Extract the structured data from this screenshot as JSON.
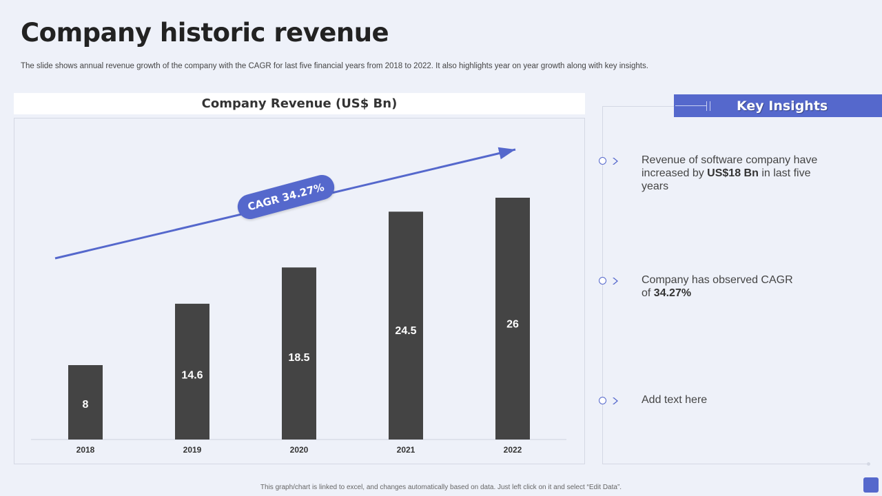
{
  "page": {
    "title": "Company historic revenue",
    "subtitle": "The slide shows annual revenue growth of the company with the CAGR for last five financial years from 2018 to 2022. It also highlights year on year growth along with key insights.",
    "footnote": "This graph/chart is linked to excel, and changes automatically based on data. Just left click on it and select “Edit Data”."
  },
  "chart_data": {
    "type": "bar",
    "title": "Company Revenue (US$ Bn)",
    "categories": [
      "2018",
      "2019",
      "2020",
      "2021",
      "2022"
    ],
    "values": [
      8,
      14.6,
      18.5,
      24.5,
      26
    ],
    "xlabel": "",
    "ylabel": "",
    "ylim": [
      0,
      26
    ],
    "grid": false,
    "bar_color": "#444444",
    "annotation": {
      "label": "CAGR 34.27%",
      "type": "trend-arrow",
      "color": "#5568cc"
    }
  },
  "insights": {
    "title": "Key Insights",
    "items": [
      {
        "pre": "Revenue of software company have increased by ",
        "bold": "US$18 Bn",
        "post": " in last five years"
      },
      {
        "pre": "Company has observed CAGR of ",
        "bold": "34.27%",
        "post": ""
      },
      {
        "pre": "Add text here",
        "bold": "",
        "post": ""
      }
    ]
  },
  "colors": {
    "accent": "#5568cc",
    "bar": "#444444",
    "background": "#eef1f9"
  }
}
